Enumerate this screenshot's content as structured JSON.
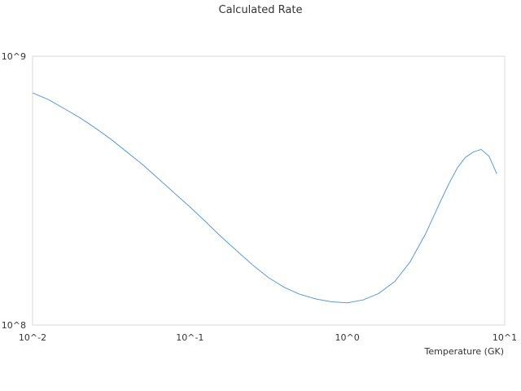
{
  "chart_data": {
    "type": "line",
    "title": "Calculated Rate",
    "xlabel": "Temperature (GK)",
    "ylabel": "",
    "x_scale": "log",
    "y_scale": "log",
    "xlim": [
      0.01,
      10
    ],
    "ylim": [
      100000000,
      1000000000
    ],
    "x_ticks": [
      {
        "value": 0.01,
        "label": "10^-2"
      },
      {
        "value": 0.1,
        "label": "10^-1"
      },
      {
        "value": 1,
        "label": "10^0"
      },
      {
        "value": 10,
        "label": "10^1"
      }
    ],
    "y_ticks": [
      {
        "value": 100000000,
        "label": "10^8"
      },
      {
        "value": 1000000000,
        "label": "10^9"
      }
    ],
    "grid": false,
    "legend": "none",
    "series_color": "#5b9bd5",
    "series": [
      {
        "x": [
          0.01,
          0.0126,
          0.0158,
          0.02,
          0.0251,
          0.0316,
          0.0398,
          0.0501,
          0.0631,
          0.0794,
          0.1,
          0.126,
          0.158,
          0.2,
          0.251,
          0.316,
          0.398,
          0.501,
          0.631,
          0.794,
          1.0,
          1.26,
          1.58,
          2.0,
          2.51,
          3.16,
          3.55,
          3.98,
          4.47,
          5.01,
          5.62,
          6.31,
          7.08,
          7.94,
          8.91
        ],
        "y": [
          730000000.0,
          690000000.0,
          640000000.0,
          590000000.0,
          540000000.0,
          490000000.0,
          440000000.0,
          395000000.0,
          350000000.0,
          310000000.0,
          275000000.0,
          242000000.0,
          213000000.0,
          188000000.0,
          167000000.0,
          150000000.0,
          138000000.0,
          130000000.0,
          125000000.0,
          122000000.0,
          121000000.0,
          124000000.0,
          131000000.0,
          145000000.0,
          172000000.0,
          220000000.0,
          255000000.0,
          295000000.0,
          340000000.0,
          385000000.0,
          420000000.0,
          440000000.0,
          450000000.0,
          425000000.0,
          365000000.0
        ]
      }
    ]
  }
}
